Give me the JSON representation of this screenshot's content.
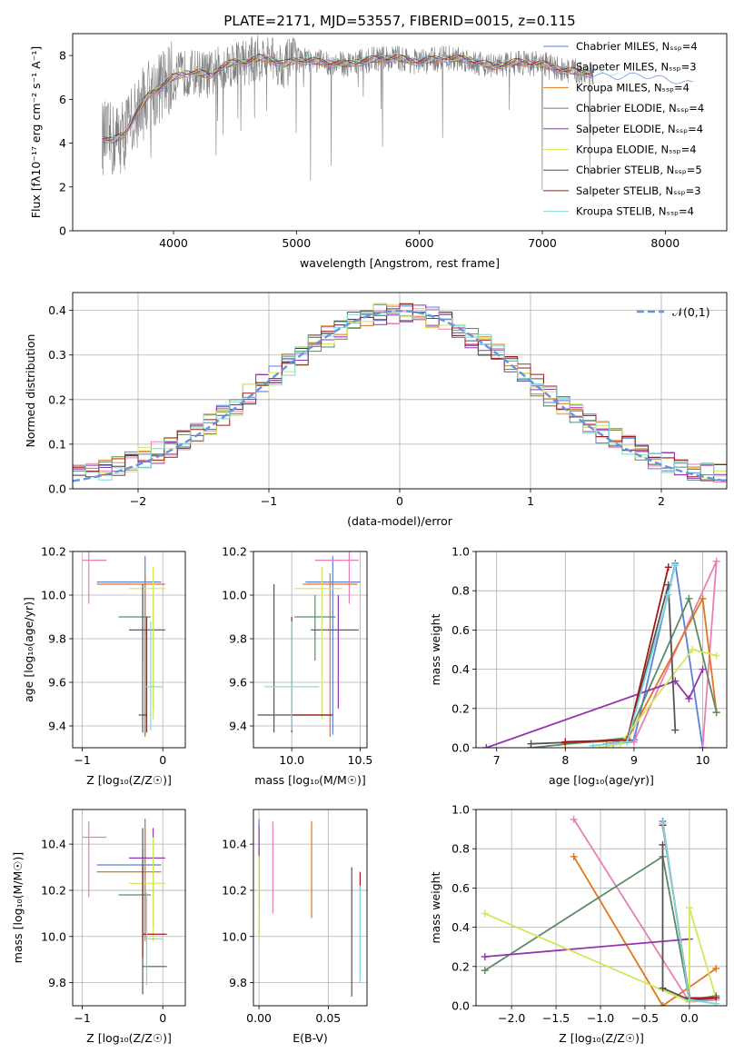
{
  "title": "PLATE=2171, MJD=53557, FIBERID=0015, z=0.115",
  "colors": {
    "chabrier_miles": "#5b7fdc",
    "salpeter_miles": "#e87fb5",
    "kroupa_miles": "#e0761d",
    "chabrier_elodie": "#5c8a66",
    "salpeter_elodie": "#9333b0",
    "kroupa_elodie": "#d4e65a",
    "chabrier_stelib": "#555555",
    "salpeter_stelib": "#a01818",
    "kroupa_stelib": "#7fd8d8",
    "data_spectrum": "#808080",
    "normal_curve": "#6495dc"
  },
  "chart_data": [
    {
      "type": "line",
      "name": "spectrum",
      "xlabel": "wavelength [Angstrom, rest frame]",
      "ylabel": "Flux [fλ10⁻¹⁷ erg cm⁻² s⁻¹ A⁻¹]",
      "xlim": [
        3180,
        8500
      ],
      "ylim": [
        0,
        9
      ],
      "xticks": [
        "4000",
        "5000",
        "6000",
        "7000",
        "8000"
      ],
      "yticks": [
        "0",
        "2",
        "4",
        "6",
        "8"
      ],
      "legend_position": "top-right",
      "legend": [
        "Chabrier MILES, Nₛₛₚ=4",
        "Salpeter MILES, Nₛₛₚ=3",
        "Kroupa MILES, Nₛₛₚ=4",
        "Chabrier ELODIE, Nₛₛₚ=4",
        "Salpeter ELODIE, Nₛₛₚ=4",
        "Kroupa ELODIE, Nₛₛₚ=4",
        "Chabrier STELIB, Nₛₛₚ=5",
        "Salpeter STELIB, Nₛₛₚ=3",
        "Kroupa STELIB, Nₛₛₚ=4"
      ],
      "continuum": {
        "x": [
          3400,
          3500,
          3600,
          3700,
          3800,
          3900,
          4000,
          4100,
          4200,
          4300,
          4400,
          4500,
          4600,
          4700,
          4800,
          4900,
          5000,
          5200,
          5400,
          5600,
          5800,
          6000,
          6200,
          6400,
          6600,
          6800,
          7000,
          7200,
          7400,
          7600,
          7800,
          8000,
          8200
        ],
        "y": [
          4.3,
          4.1,
          4.4,
          5.4,
          6.2,
          6.6,
          7.0,
          7.2,
          7.2,
          7.1,
          7.5,
          7.7,
          7.7,
          7.9,
          7.8,
          7.6,
          7.8,
          7.7,
          7.6,
          7.8,
          7.9,
          7.7,
          7.9,
          7.8,
          7.5,
          7.7,
          7.6,
          7.3,
          7.2,
          7.1,
          7.2,
          7.0,
          6.8
        ]
      }
    },
    {
      "type": "step",
      "name": "residuals",
      "xlabel": "(data-model)/error",
      "ylabel": "Normed distribution",
      "xlim": [
        -2.5,
        2.5
      ],
      "ylim": [
        0,
        0.44
      ],
      "xticks": [
        "−2",
        "−1",
        "0",
        "1",
        "2"
      ],
      "yticks": [
        "0.0",
        "0.1",
        "0.2",
        "0.3",
        "0.4"
      ],
      "legend": [
        "𝒩(0,1)"
      ],
      "legend_position": "top-right",
      "bin_width": 0.1,
      "bin_start": -2.5,
      "normal": {
        "mu": 0,
        "sigma": 1
      }
    },
    {
      "type": "errorbar",
      "name": "Z vs age",
      "xlabel": "Z [log₁₀(Z/Z☉)]",
      "ylabel": "age  [log₁₀(age/yr)]",
      "xlim": [
        -1.12,
        0.28
      ],
      "ylim": [
        9.3,
        10.2
      ],
      "xticks": [
        "−1",
        "0"
      ],
      "yticks": [
        "9.4",
        "9.6",
        "9.8",
        "10.0",
        "10.2"
      ],
      "points": [
        {
          "x": -0.22,
          "xerr": [
            0.6,
            0.2
          ],
          "y": 10.06,
          "yerr": [
            0.7,
            0.12
          ]
        },
        {
          "x": -0.92,
          "xerr": [
            0.08,
            0.22
          ],
          "y": 10.16,
          "yerr": [
            0.2,
            0.04
          ]
        },
        {
          "x": -0.22,
          "xerr": [
            0.6,
            0.25
          ],
          "y": 10.05,
          "yerr": [
            0.7,
            0.05
          ]
        },
        {
          "x": -0.25,
          "xerr": [
            0.3,
            0.1
          ],
          "y": 9.9,
          "yerr": [
            0.2,
            0.1
          ]
        },
        {
          "x": -0.12,
          "xerr": [
            0.3,
            0.15
          ],
          "y": 9.84,
          "yerr": [
            0.36,
            0.16
          ]
        },
        {
          "x": -0.12,
          "xerr": [
            0.3,
            0.15
          ],
          "y": 10.03,
          "yerr": [
            0.6,
            0.1
          ]
        },
        {
          "x": -0.25,
          "xerr": [
            0.05,
            0.0
          ],
          "y": 9.45,
          "yerr": [
            0.08,
            0.6
          ]
        },
        {
          "x": -0.2,
          "xerr": [
            0.05,
            0.0
          ],
          "y": 9.45,
          "yerr": [
            0.08,
            0.45
          ]
        },
        {
          "x": -0.15,
          "xerr": [
            0.1,
            0.15
          ],
          "y": 9.58,
          "yerr": [
            0.2,
            0.3
          ]
        }
      ]
    },
    {
      "type": "errorbar",
      "name": "mass vs age",
      "xlabel": "mass [log₁₀(M/M☉)]",
      "ylabel": "",
      "xlim": [
        9.72,
        10.55
      ],
      "ylim": [
        9.3,
        10.2
      ],
      "xticks": [
        "10.0",
        "10.5"
      ],
      "yticks": [
        "9.4",
        "9.6",
        "9.8",
        "10.0",
        "10.2"
      ],
      "points": [
        {
          "x": 10.3,
          "xerr": [
            0.2,
            0.2
          ],
          "y": 10.06,
          "yerr": [
            0.7,
            0.12
          ]
        },
        {
          "x": 10.42,
          "xerr": [
            0.25,
            0.07
          ],
          "y": 10.16,
          "yerr": [
            0.2,
            0.04
          ]
        },
        {
          "x": 10.28,
          "xerr": [
            0.2,
            0.2
          ],
          "y": 10.05,
          "yerr": [
            0.7,
            0.05
          ]
        },
        {
          "x": 10.17,
          "xerr": [
            0.15,
            0.15
          ],
          "y": 9.9,
          "yerr": [
            0.2,
            0.1
          ]
        },
        {
          "x": 10.34,
          "xerr": [
            0.2,
            0.15
          ],
          "y": 9.84,
          "yerr": [
            0.36,
            0.16
          ]
        },
        {
          "x": 10.22,
          "xerr": [
            0.2,
            0.15
          ],
          "y": 10.03,
          "yerr": [
            0.6,
            0.1
          ]
        },
        {
          "x": 9.87,
          "xerr": [
            0.12,
            0.42
          ],
          "y": 9.45,
          "yerr": [
            0.08,
            0.6
          ]
        },
        {
          "x": 10.0,
          "xerr": [
            0.0,
            0.3
          ],
          "y": 9.45,
          "yerr": [
            0.08,
            0.45
          ]
        },
        {
          "x": 10.0,
          "xerr": [
            0.2,
            0.2
          ],
          "y": 9.58,
          "yerr": [
            0.2,
            0.3
          ]
        }
      ]
    },
    {
      "type": "line",
      "name": "age mass weights",
      "xlabel": "age  [log₁₀(age/yr)]",
      "ylabel": "mass weight",
      "xlim": [
        6.7,
        10.35
      ],
      "ylim": [
        0,
        1
      ],
      "xticks": [
        "7",
        "8",
        "9",
        "10"
      ],
      "yticks": [
        "0.0",
        "0.2",
        "0.4",
        "0.6",
        "0.8",
        "1.0"
      ],
      "series": [
        {
          "x": [
            8.6,
            9.0,
            9.6,
            10.0
          ],
          "y": [
            0.02,
            0.04,
            0.94,
            0.0
          ]
        },
        {
          "x": [
            8.7,
            9.0,
            10.2,
            10.0
          ],
          "y": [
            0.02,
            0.03,
            0.95,
            0.0
          ]
        },
        {
          "x": [
            8.0,
            8.9,
            10.0,
            10.2
          ],
          "y": [
            0.02,
            0.04,
            0.76,
            0.18
          ]
        },
        {
          "x": [
            7.5,
            8.9,
            9.8,
            10.2
          ],
          "y": [
            0.0,
            0.05,
            0.76,
            0.18
          ]
        },
        {
          "x": [
            6.85,
            9.6,
            9.8,
            10.0
          ],
          "y": [
            0.0,
            0.34,
            0.25,
            0.4
          ]
        },
        {
          "x": [
            8.5,
            8.8,
            9.85,
            10.2
          ],
          "y": [
            0.0,
            0.02,
            0.5,
            0.47
          ]
        },
        {
          "x": [
            7.5,
            8.9,
            9.5,
            9.6
          ],
          "y": [
            0.02,
            0.04,
            0.83,
            0.09
          ]
        },
        {
          "x": [
            8.0,
            8.9,
            9.5
          ],
          "y": [
            0.03,
            0.04,
            0.92
          ]
        },
        {
          "x": [
            8.4,
            8.9,
            9.5,
            9.6
          ],
          "y": [
            0.01,
            0.03,
            0.78,
            0.93
          ]
        }
      ]
    },
    {
      "type": "errorbar",
      "name": "Z vs mass",
      "xlabel": "Z [log₁₀(Z/Z☉)]",
      "ylabel": "mass [log₁₀(M/M☉)]",
      "xlim": [
        -1.12,
        0.28
      ],
      "ylim": [
        9.7,
        10.55
      ],
      "xticks": [
        "−1",
        "0"
      ],
      "yticks": [
        "9.8",
        "10.0",
        "10.2",
        "10.4"
      ],
      "points": [
        {
          "x": -0.22,
          "xerr": [
            0.6,
            0.2
          ],
          "y": 10.31,
          "yerr": [
            0.3,
            0.2
          ]
        },
        {
          "x": -0.92,
          "xerr": [
            0.08,
            0.22
          ],
          "y": 10.43,
          "yerr": [
            0.26,
            0.07
          ]
        },
        {
          "x": -0.22,
          "xerr": [
            0.6,
            0.2
          ],
          "y": 10.28,
          "yerr": [
            0.3,
            0.2
          ]
        },
        {
          "x": -0.25,
          "xerr": [
            0.3,
            0.1
          ],
          "y": 10.18,
          "yerr": [
            0.2,
            0.2
          ]
        },
        {
          "x": -0.12,
          "xerr": [
            0.3,
            0.15
          ],
          "y": 10.34,
          "yerr": [
            0.3,
            0.13
          ]
        },
        {
          "x": -0.12,
          "xerr": [
            0.3,
            0.15
          ],
          "y": 10.23,
          "yerr": [
            0.25,
            0.2
          ]
        },
        {
          "x": -0.25,
          "xerr": [
            0.0,
            0.3
          ],
          "y": 9.87,
          "yerr": [
            0.12,
            0.6
          ]
        },
        {
          "x": -0.25,
          "xerr": [
            0.0,
            0.3
          ],
          "y": 10.01,
          "yerr": [
            0.1,
            0.3
          ]
        },
        {
          "x": -0.2,
          "xerr": [
            0.0,
            0.2
          ],
          "y": 9.99,
          "yerr": [
            0.2,
            0.2
          ]
        }
      ]
    },
    {
      "type": "errorbar",
      "name": "E(B-V) vs mass",
      "xlabel": "E(B-V)",
      "ylabel": "",
      "xlim": [
        -0.004,
        0.078
      ],
      "ylim": [
        9.7,
        10.55
      ],
      "xticks": [
        "0.00",
        "0.05"
      ],
      "yticks": [
        "9.8",
        "10.0",
        "10.2",
        "10.4"
      ],
      "points": [
        {
          "x": 0.0,
          "y": 10.31,
          "yerr": [
            0.3,
            0.2
          ]
        },
        {
          "x": 0.01,
          "y": 10.3,
          "yerr": [
            0.2,
            0.2
          ]
        },
        {
          "x": 0.038,
          "y": 10.28,
          "yerr": [
            0.2,
            0.22
          ]
        },
        {
          "x": 0.0,
          "y": 10.18,
          "yerr": [
            0.2,
            0.2
          ]
        },
        {
          "x": 0.0,
          "y": 10.3,
          "yerr": [
            0.2,
            0.18
          ]
        },
        {
          "x": 0.0,
          "y": 10.15,
          "yerr": [
            0.17,
            0.2
          ]
        },
        {
          "x": 0.067,
          "y": 10.01,
          "yerr": [
            0.27,
            0.29
          ]
        },
        {
          "x": 0.073,
          "y": 10.23,
          "yerr": [
            0.03,
            0.05
          ]
        },
        {
          "x": 0.073,
          "y": 10.0,
          "yerr": [
            0.2,
            0.22
          ]
        }
      ]
    },
    {
      "type": "line",
      "name": "Z mass weights",
      "xlabel": "Z [log₁₀(Z/Z☉)]",
      "ylabel": "mass weight",
      "xlim": [
        -2.4,
        0.42
      ],
      "ylim": [
        0,
        1
      ],
      "xticks": [
        "−2.0",
        "−1.5",
        "−1.0",
        "−0.5",
        "0.0"
      ],
      "yticks": [
        "0.0",
        "0.2",
        "0.4",
        "0.6",
        "0.8",
        "1.0"
      ],
      "series": [
        {
          "x": [
            -0.3,
            0.0,
            0.3
          ],
          "y": [
            0.94,
            0.02,
            0.04
          ]
        },
        {
          "x": [
            -1.3,
            0.0,
            0.3
          ],
          "y": [
            0.95,
            0.02,
            0.03
          ]
        },
        {
          "x": [
            -1.3,
            -0.3,
            0.3
          ],
          "y": [
            0.76,
            0.0,
            0.19
          ]
        },
        {
          "x": [
            -2.3,
            -0.3,
            0.0,
            0.3
          ],
          "y": [
            0.18,
            0.76,
            0.03,
            0.05
          ]
        },
        {
          "x": [
            -2.3,
            0.0
          ],
          "y": [
            0.25,
            0.34
          ]
        },
        {
          "x": [
            -2.3,
            0.0,
            0.0,
            0.3
          ],
          "y": [
            0.47,
            0.02,
            0.5,
            0.04
          ]
        },
        {
          "x": [
            -0.3,
            -0.3,
            0.0,
            0.3
          ],
          "y": [
            0.82,
            0.09,
            0.03,
            0.04
          ]
        },
        {
          "x": [
            -0.3,
            0.0,
            0.3
          ],
          "y": [
            0.92,
            0.04,
            0.04
          ]
        },
        {
          "x": [
            -0.3,
            0.0,
            0.3
          ],
          "y": [
            0.93,
            0.03,
            0.01
          ]
        }
      ]
    }
  ]
}
